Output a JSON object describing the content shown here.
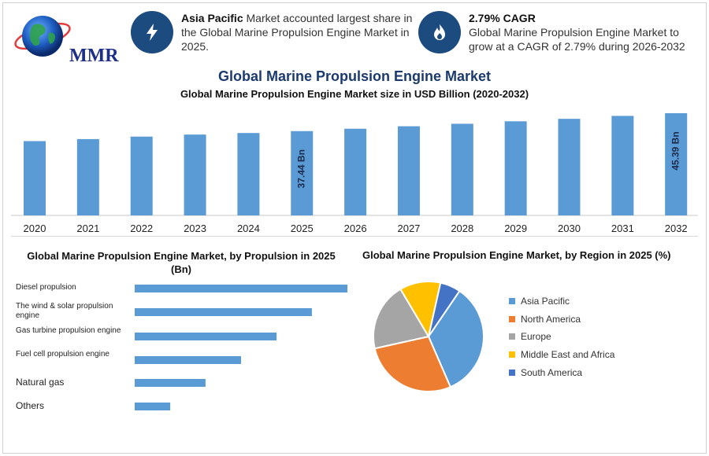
{
  "brand": {
    "logo_text": "MMR",
    "accent": "#1c4b80",
    "bar_color": "#5b9bd5"
  },
  "info_cards": [
    {
      "icon": "lightning-icon",
      "highlight": "Asia Pacific",
      "text": " Market accounted largest share in the Global Marine Propulsion Engine Market in 2025."
    },
    {
      "icon": "flame-icon",
      "highlight": "2.79% CAGR",
      "text": "Global Marine Propulsion Engine Market to grow at a CAGR of 2.79% during 2026-2032"
    }
  ],
  "chart_data": [
    {
      "type": "bar",
      "title": "Global Marine Propulsion Engine Market",
      "subtitle": "Global Marine Propulsion Engine Market size in USD Billion (2020-2032)",
      "categories": [
        "2020",
        "2021",
        "2022",
        "2023",
        "2024",
        "2025",
        "2026",
        "2027",
        "2028",
        "2029",
        "2030",
        "2031",
        "2032"
      ],
      "values": [
        33.0,
        33.9,
        35.0,
        35.9,
        36.6,
        37.44,
        38.5,
        39.6,
        40.7,
        41.8,
        42.9,
        44.2,
        45.39
      ],
      "data_labels": {
        "5": "37.44 Bn",
        "12": "45.39 Bn"
      },
      "ylim": [
        0,
        45.39
      ],
      "color": "#5b9bd5"
    },
    {
      "type": "bar",
      "orientation": "horizontal",
      "title": "Global Marine Propulsion Engine Market, by Propulsion in 2025 (Bn)",
      "categories": [
        "Diesel propulsion",
        "The wind & solar propulsion engine",
        "Gas turbine propulsion engine",
        "Fuel cell propulsion engine",
        "Natural gas",
        "Others"
      ],
      "values": [
        100,
        83.3,
        66.7,
        50,
        33.3,
        16.7
      ],
      "color": "#5b9bd5"
    },
    {
      "type": "pie",
      "title": "Global Marine Propulsion Engine Market, by Region in 2025 (%)",
      "categories": [
        "Asia Pacific",
        "North America",
        "Europe",
        "Middle East and Africa",
        "South America"
      ],
      "values": [
        34,
        28,
        20,
        12,
        6
      ],
      "colors": [
        "#5b9bd5",
        "#ed7d31",
        "#a5a5a5",
        "#ffc000",
        "#4472c4"
      ],
      "legend": "right"
    }
  ]
}
